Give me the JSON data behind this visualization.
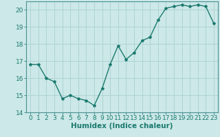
{
  "x": [
    0,
    1,
    2,
    3,
    4,
    5,
    6,
    7,
    8,
    9,
    10,
    11,
    12,
    13,
    14,
    15,
    16,
    17,
    18,
    19,
    20,
    21,
    22,
    23
  ],
  "y": [
    16.8,
    16.8,
    16.0,
    15.8,
    14.8,
    15.0,
    14.8,
    14.7,
    14.4,
    15.4,
    16.8,
    17.9,
    17.1,
    17.5,
    18.2,
    18.4,
    19.4,
    20.1,
    20.2,
    20.3,
    20.2,
    20.3,
    20.2,
    19.2
  ],
  "line_color": "#1a7a6e",
  "marker": "*",
  "marker_size": 3,
  "bg_color": "#cce8e8",
  "grid_color": "#aacfcf",
  "xlabel": "Humidex (Indice chaleur)",
  "xlim": [
    -0.5,
    23.5
  ],
  "ylim": [
    14,
    20.5
  ],
  "yticks": [
    14,
    15,
    16,
    17,
    18,
    19,
    20
  ],
  "xticks": [
    0,
    1,
    2,
    3,
    4,
    5,
    6,
    7,
    8,
    9,
    10,
    11,
    12,
    13,
    14,
    15,
    16,
    17,
    18,
    19,
    20,
    21,
    22,
    23
  ],
  "axis_color": "#4a9090",
  "font_size_label": 7.5,
  "font_size_tick": 6.5,
  "line_width": 1.0
}
